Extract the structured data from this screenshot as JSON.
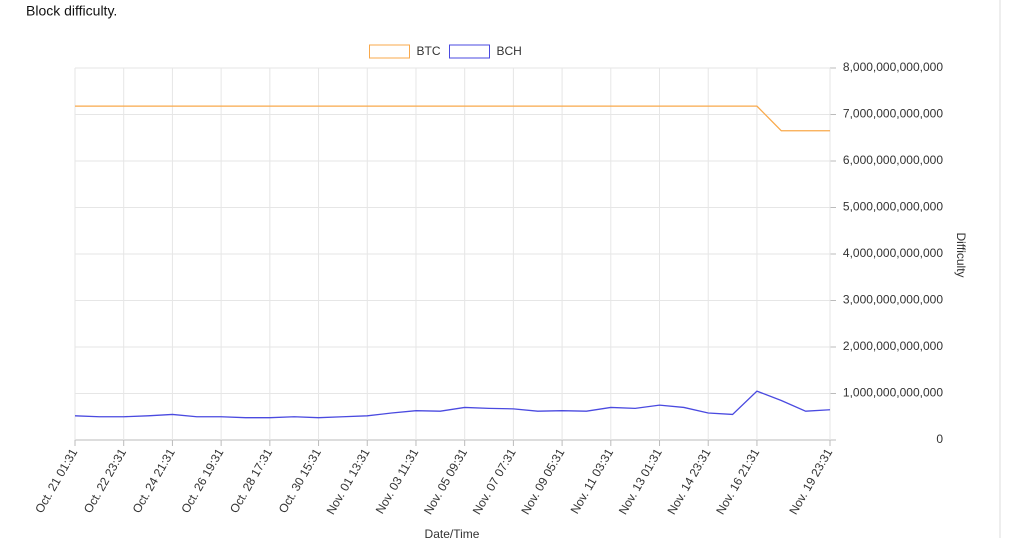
{
  "chart_data": {
    "type": "line",
    "title": "Block difficulty.",
    "x_label": "Date/Time",
    "y_label": "Difficulty",
    "categories": [
      "Oct. 21 01:31",
      null,
      "Oct. 22 23:31",
      null,
      "Oct. 24 21:31",
      null,
      "Oct. 26 19:31",
      null,
      "Oct. 28 17:31",
      null,
      "Oct. 30 15:31",
      null,
      "Nov. 01 13:31",
      null,
      "Nov. 03 11:31",
      null,
      "Nov. 05 09:31",
      null,
      "Nov. 07 07:31",
      null,
      "Nov. 09 05:31",
      null,
      "Nov. 11 03:31",
      null,
      "Nov. 13 01:31",
      null,
      "Nov. 14 23:31",
      null,
      "Nov. 16 21:31",
      null,
      null,
      "Nov. 19 23:31"
    ],
    "series": [
      {
        "name": "BTC",
        "color": "#f9a94b",
        "values": [
          7180000000000,
          7180000000000,
          7180000000000,
          7180000000000,
          7180000000000,
          7180000000000,
          7180000000000,
          7180000000000,
          7180000000000,
          7180000000000,
          7180000000000,
          7180000000000,
          7180000000000,
          7180000000000,
          7180000000000,
          7180000000000,
          7180000000000,
          7180000000000,
          7180000000000,
          7180000000000,
          7180000000000,
          7180000000000,
          7180000000000,
          7180000000000,
          7180000000000,
          7180000000000,
          7180000000000,
          7180000000000,
          7180000000000,
          6650000000000,
          6650000000000,
          6650000000000
        ]
      },
      {
        "name": "BCH",
        "color": "#4a4ae0",
        "values": [
          520000000000,
          500000000000,
          500000000000,
          520000000000,
          550000000000,
          500000000000,
          500000000000,
          480000000000,
          480000000000,
          500000000000,
          480000000000,
          500000000000,
          520000000000,
          580000000000,
          630000000000,
          620000000000,
          700000000000,
          680000000000,
          670000000000,
          620000000000,
          630000000000,
          620000000000,
          700000000000,
          680000000000,
          750000000000,
          700000000000,
          580000000000,
          550000000000,
          1050000000000,
          850000000000,
          620000000000,
          650000000000
        ]
      }
    ],
    "ylim": [
      0,
      8000000000000
    ],
    "yticks": [
      0,
      {
        "value": 1000000000000,
        "label": "1,000,000,000,000"
      },
      {
        "value": 2000000000000,
        "label": "2,000,000,000,000"
      },
      {
        "value": 3000000000000,
        "label": "3,000,000,000,000"
      },
      {
        "value": 4000000000000,
        "label": "4,000,000,000,000"
      },
      {
        "value": 5000000000000,
        "label": "5,000,000,000,000"
      },
      {
        "value": 6000000000000,
        "label": "6,000,000,000,000"
      },
      {
        "value": 7000000000000,
        "label": "7,000,000,000,000"
      },
      {
        "value": 8000000000000,
        "label": "8,000,000,000,000"
      }
    ],
    "grid": true,
    "legend": "top"
  }
}
